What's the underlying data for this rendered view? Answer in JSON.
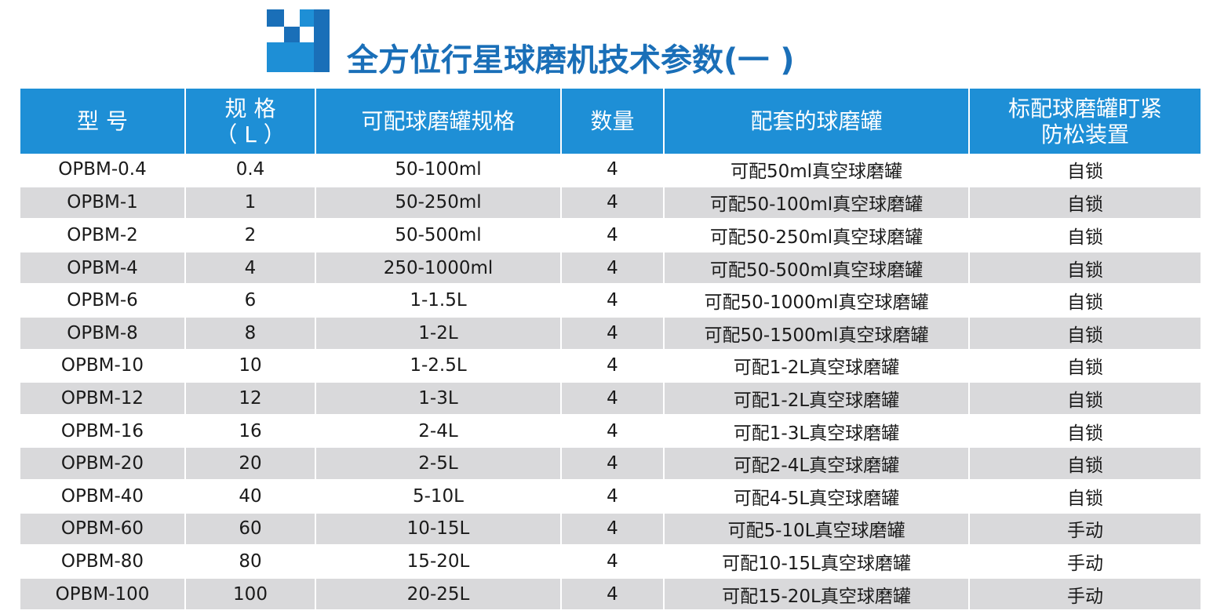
{
  "header": {
    "title": "全方位行星球磨机技术参数(一 )",
    "logo_icon": "stair-block-logo-icon",
    "accent_color": "#1a6fb8",
    "table_header_color": "#1e8fd6",
    "row_stripe_color": "#d9d9db"
  },
  "table": {
    "columns": [
      {
        "line1": "型  号",
        "line2": ""
      },
      {
        "line1": "规 格",
        "line2": "（ L ）"
      },
      {
        "line1": "可配球磨罐规格",
        "line2": ""
      },
      {
        "line1": "数量",
        "line2": ""
      },
      {
        "line1": "配套的球磨罐",
        "line2": ""
      },
      {
        "line1": "标配球磨罐盯紧",
        "line2": "防松装置"
      }
    ],
    "rows": [
      [
        "OPBM-0.4",
        "0.4",
        "50-100ml",
        "4",
        "可配50ml真空球磨罐",
        "自锁"
      ],
      [
        "OPBM-1",
        "1",
        "50-250ml",
        "4",
        "可配50-100ml真空球磨罐",
        "自锁"
      ],
      [
        "OPBM-2",
        "2",
        "50-500ml",
        "4",
        "可配50-250ml真空球磨罐",
        "自锁"
      ],
      [
        "OPBM-4",
        "4",
        "250-1000ml",
        "4",
        "可配50-500ml真空球磨罐",
        "自锁"
      ],
      [
        "OPBM-6",
        "6",
        "1-1.5L",
        "4",
        "可配50-1000ml真空球磨罐",
        "自锁"
      ],
      [
        "OPBM-8",
        "8",
        "1-2L",
        "4",
        "可配50-1500ml真空球磨罐",
        "自锁"
      ],
      [
        "OPBM-10",
        "10",
        "1-2.5L",
        "4",
        "可配1-2L真空球磨罐",
        "自锁"
      ],
      [
        "OPBM-12",
        "12",
        "1-3L",
        "4",
        "可配1-2L真空球磨罐",
        "自锁"
      ],
      [
        "OPBM-16",
        "16",
        "2-4L",
        "4",
        "可配1-3L真空球磨罐",
        "自锁"
      ],
      [
        "OPBM-20",
        "20",
        "2-5L",
        "4",
        "可配2-4L真空球磨罐",
        "自锁"
      ],
      [
        "OPBM-40",
        "40",
        "5-10L",
        "4",
        "可配4-5L真空球磨罐",
        "自锁"
      ],
      [
        "OPBM-60",
        "60",
        "10-15L",
        "4",
        "可配5-10L真空球磨罐",
        "手动"
      ],
      [
        "OPBM-80",
        "80",
        "15-20L",
        "4",
        "可配10-15L真空球磨罐",
        "手动"
      ],
      [
        "OPBM-100",
        "100",
        "20-25L",
        "4",
        "可配15-20L真空球磨罐",
        "手动"
      ]
    ]
  }
}
